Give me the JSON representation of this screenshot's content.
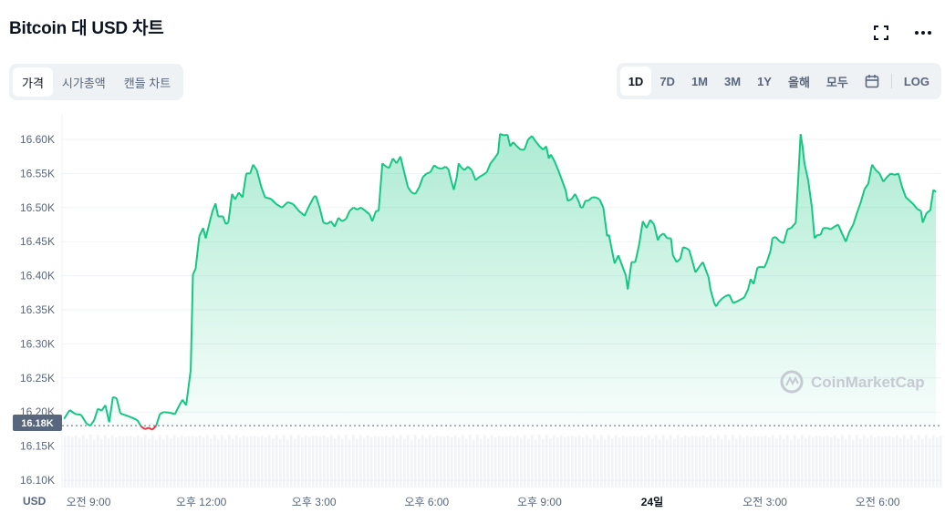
{
  "header": {
    "title": "Bitcoin 대 USD 차트"
  },
  "icons": {
    "fullscreen": "fullscreen-icon",
    "more": "more-icon",
    "calendar": "calendar-icon"
  },
  "view_tabs": [
    {
      "label": "가격",
      "active": true
    },
    {
      "label": "시가총액",
      "active": false
    },
    {
      "label": "캔들 차트",
      "active": false
    }
  ],
  "range_tabs": [
    {
      "label": "1D",
      "active": true
    },
    {
      "label": "7D",
      "active": false
    },
    {
      "label": "1M",
      "active": false
    },
    {
      "label": "3M",
      "active": false
    },
    {
      "label": "1Y",
      "active": false
    },
    {
      "label": "올해",
      "active": false
    },
    {
      "label": "모두",
      "active": false
    }
  ],
  "log_label": "LOG",
  "watermark": "CoinMarketCap",
  "colors": {
    "up": "#16c784",
    "down": "#ea3943",
    "volume": "#cfd6e4",
    "badge": "#58667e"
  },
  "chart_data": {
    "type": "line",
    "title": "Bitcoin 대 USD 차트",
    "currency_label": "USD",
    "y_ticks": [
      "16.60K",
      "16.55K",
      "16.50K",
      "16.45K",
      "16.40K",
      "16.35K",
      "16.30K",
      "16.25K",
      "16.20K",
      "16.15K",
      "16.10K"
    ],
    "y_tick_values": [
      16600,
      16550,
      16500,
      16450,
      16400,
      16350,
      16300,
      16250,
      16200,
      16150,
      16100
    ],
    "ylim": [
      16085,
      16625
    ],
    "x_ticks": [
      {
        "label": "오전 9:00",
        "t": 0,
        "bold": false
      },
      {
        "label": "오후 12:00",
        "t": 3,
        "bold": false
      },
      {
        "label": "오후 3:00",
        "t": 6,
        "bold": false
      },
      {
        "label": "오후 6:00",
        "t": 9,
        "bold": false
      },
      {
        "label": "오후 9:00",
        "t": 12,
        "bold": false
      },
      {
        "label": "24일",
        "t": 15,
        "bold": true
      },
      {
        "label": "오전 3:00",
        "t": 18,
        "bold": false
      },
      {
        "label": "오전 6:00",
        "t": 21,
        "bold": false
      }
    ],
    "x_range_hours": [
      -0.7,
      22.6
    ],
    "baseline": {
      "value": 16180,
      "label": "16.18K"
    },
    "series": [
      {
        "points": [
          [
            -0.65,
            16190
          ],
          [
            -0.5,
            16203
          ],
          [
            -0.35,
            16197
          ],
          [
            -0.2,
            16196
          ],
          [
            -0.05,
            16183
          ],
          [
            0.05,
            16180
          ],
          [
            0.15,
            16188
          ],
          [
            0.25,
            16205
          ],
          [
            0.35,
            16202
          ],
          [
            0.45,
            16210
          ],
          [
            0.55,
            16185
          ],
          [
            0.65,
            16222
          ],
          [
            0.75,
            16220
          ],
          [
            0.85,
            16198
          ],
          [
            1.0,
            16195
          ],
          [
            1.15,
            16192
          ],
          [
            1.3,
            16188
          ],
          [
            1.4,
            16179
          ],
          [
            1.5,
            16175
          ],
          [
            1.6,
            16177
          ],
          [
            1.7,
            16174
          ],
          [
            1.8,
            16180
          ],
          [
            1.9,
            16197
          ],
          [
            2.0,
            16200
          ],
          [
            2.15,
            16199
          ],
          [
            2.3,
            16197
          ],
          [
            2.4,
            16208
          ],
          [
            2.5,
            16218
          ],
          [
            2.6,
            16210
          ],
          [
            2.72,
            16262
          ],
          [
            2.78,
            16402
          ],
          [
            2.85,
            16410
          ],
          [
            2.95,
            16458
          ],
          [
            3.05,
            16470
          ],
          [
            3.12,
            16455
          ],
          [
            3.22,
            16478
          ],
          [
            3.3,
            16495
          ],
          [
            3.38,
            16506
          ],
          [
            3.45,
            16487
          ],
          [
            3.58,
            16487
          ],
          [
            3.65,
            16476
          ],
          [
            3.72,
            16478
          ],
          [
            3.82,
            16520
          ],
          [
            3.9,
            16512
          ],
          [
            4.0,
            16522
          ],
          [
            4.1,
            16515
          ],
          [
            4.2,
            16550
          ],
          [
            4.3,
            16550
          ],
          [
            4.38,
            16563
          ],
          [
            4.48,
            16555
          ],
          [
            4.6,
            16530
          ],
          [
            4.7,
            16515
          ],
          [
            4.85,
            16513
          ],
          [
            5.0,
            16505
          ],
          [
            5.15,
            16500
          ],
          [
            5.3,
            16508
          ],
          [
            5.45,
            16505
          ],
          [
            5.6,
            16495
          ],
          [
            5.75,
            16488
          ],
          [
            5.85,
            16500
          ],
          [
            6.0,
            16516
          ],
          [
            6.05,
            16517
          ],
          [
            6.15,
            16500
          ],
          [
            6.25,
            16478
          ],
          [
            6.35,
            16476
          ],
          [
            6.45,
            16480
          ],
          [
            6.55,
            16472
          ],
          [
            6.65,
            16485
          ],
          [
            6.75,
            16480
          ],
          [
            6.85,
            16483
          ],
          [
            6.95,
            16495
          ],
          [
            7.05,
            16500
          ],
          [
            7.15,
            16497
          ],
          [
            7.25,
            16500
          ],
          [
            7.35,
            16496
          ],
          [
            7.48,
            16490
          ],
          [
            7.55,
            16480
          ],
          [
            7.65,
            16495
          ],
          [
            7.72,
            16495
          ],
          [
            7.82,
            16565
          ],
          [
            7.92,
            16560
          ],
          [
            8.0,
            16558
          ],
          [
            8.1,
            16572
          ],
          [
            8.2,
            16565
          ],
          [
            8.3,
            16575
          ],
          [
            8.4,
            16552
          ],
          [
            8.5,
            16530
          ],
          [
            8.6,
            16522
          ],
          [
            8.7,
            16520
          ],
          [
            8.8,
            16530
          ],
          [
            8.9,
            16545
          ],
          [
            9.0,
            16550
          ],
          [
            9.1,
            16552
          ],
          [
            9.2,
            16562
          ],
          [
            9.3,
            16558
          ],
          [
            9.4,
            16557
          ],
          [
            9.5,
            16560
          ],
          [
            9.58,
            16556
          ],
          [
            9.65,
            16540
          ],
          [
            9.72,
            16526
          ],
          [
            9.8,
            16545
          ],
          [
            9.85,
            16565
          ],
          [
            9.9,
            16560
          ],
          [
            10.0,
            16555
          ],
          [
            10.1,
            16560
          ],
          [
            10.2,
            16555
          ],
          [
            10.3,
            16540
          ],
          [
            10.4,
            16545
          ],
          [
            10.5,
            16548
          ],
          [
            10.6,
            16552
          ],
          [
            10.7,
            16565
          ],
          [
            10.8,
            16572
          ],
          [
            10.9,
            16580
          ],
          [
            10.95,
            16608
          ],
          [
            11.05,
            16606
          ],
          [
            11.15,
            16607
          ],
          [
            11.22,
            16590
          ],
          [
            11.3,
            16596
          ],
          [
            11.4,
            16590
          ],
          [
            11.5,
            16585
          ],
          [
            11.6,
            16585
          ],
          [
            11.7,
            16600
          ],
          [
            11.8,
            16605
          ],
          [
            11.9,
            16597
          ],
          [
            12.0,
            16590
          ],
          [
            12.1,
            16585
          ],
          [
            12.18,
            16590
          ],
          [
            12.25,
            16572
          ],
          [
            12.3,
            16578
          ],
          [
            12.4,
            16568
          ],
          [
            12.5,
            16555
          ],
          [
            12.6,
            16540
          ],
          [
            12.7,
            16525
          ],
          [
            12.75,
            16510
          ],
          [
            12.85,
            16512
          ],
          [
            12.95,
            16520
          ],
          [
            13.05,
            16508
          ],
          [
            13.1,
            16500
          ],
          [
            13.15,
            16500
          ],
          [
            13.22,
            16510
          ],
          [
            13.3,
            16510
          ],
          [
            13.4,
            16515
          ],
          [
            13.5,
            16515
          ],
          [
            13.6,
            16512
          ],
          [
            13.7,
            16500
          ],
          [
            13.8,
            16458
          ],
          [
            13.85,
            16460
          ],
          [
            13.92,
            16440
          ],
          [
            14.0,
            16418
          ],
          [
            14.1,
            16430
          ],
          [
            14.2,
            16415
          ],
          [
            14.3,
            16400
          ],
          [
            14.35,
            16380
          ],
          [
            14.45,
            16420
          ],
          [
            14.55,
            16420
          ],
          [
            14.65,
            16445
          ],
          [
            14.75,
            16480
          ],
          [
            14.85,
            16470
          ],
          [
            14.95,
            16482
          ],
          [
            15.05,
            16475
          ],
          [
            15.15,
            16452
          ],
          [
            15.2,
            16458
          ],
          [
            15.3,
            16462
          ],
          [
            15.4,
            16455
          ],
          [
            15.5,
            16455
          ],
          [
            15.55,
            16430
          ],
          [
            15.65,
            16420
          ],
          [
            15.75,
            16425
          ],
          [
            15.82,
            16442
          ],
          [
            15.92,
            16440
          ],
          [
            15.98,
            16438
          ],
          [
            16.05,
            16425
          ],
          [
            16.15,
            16405
          ],
          [
            16.25,
            16413
          ],
          [
            16.35,
            16420
          ],
          [
            16.45,
            16405
          ],
          [
            16.5,
            16398
          ],
          [
            16.55,
            16380
          ],
          [
            16.65,
            16360
          ],
          [
            16.7,
            16355
          ],
          [
            16.75,
            16360
          ],
          [
            16.85,
            16366
          ],
          [
            16.95,
            16370
          ],
          [
            17.05,
            16372
          ],
          [
            17.15,
            16360
          ],
          [
            17.25,
            16362
          ],
          [
            17.35,
            16365
          ],
          [
            17.45,
            16368
          ],
          [
            17.55,
            16380
          ],
          [
            17.62,
            16395
          ],
          [
            17.7,
            16388
          ],
          [
            17.8,
            16412
          ],
          [
            17.9,
            16413
          ],
          [
            17.98,
            16412
          ],
          [
            18.05,
            16420
          ],
          [
            18.15,
            16437
          ],
          [
            18.2,
            16455
          ],
          [
            18.28,
            16457
          ],
          [
            18.4,
            16450
          ],
          [
            18.5,
            16448
          ],
          [
            18.6,
            16468
          ],
          [
            18.7,
            16470
          ],
          [
            18.82,
            16478
          ],
          [
            18.88,
            16538
          ],
          [
            18.95,
            16608
          ],
          [
            19.0,
            16590
          ],
          [
            19.05,
            16565
          ],
          [
            19.15,
            16540
          ],
          [
            19.25,
            16500
          ],
          [
            19.32,
            16455
          ],
          [
            19.4,
            16460
          ],
          [
            19.48,
            16460
          ],
          [
            19.55,
            16470
          ],
          [
            19.65,
            16470
          ],
          [
            19.75,
            16468
          ],
          [
            19.85,
            16472
          ],
          [
            19.95,
            16475
          ],
          [
            20.05,
            16462
          ],
          [
            20.15,
            16450
          ],
          [
            20.25,
            16465
          ],
          [
            20.35,
            16475
          ],
          [
            20.45,
            16492
          ],
          [
            20.55,
            16508
          ],
          [
            20.65,
            16527
          ],
          [
            20.75,
            16535
          ],
          [
            20.85,
            16563
          ],
          [
            20.95,
            16555
          ],
          [
            21.05,
            16550
          ],
          [
            21.15,
            16538
          ],
          [
            21.25,
            16545
          ],
          [
            21.35,
            16550
          ],
          [
            21.45,
            16548
          ],
          [
            21.55,
            16550
          ],
          [
            21.65,
            16530
          ],
          [
            21.75,
            16515
          ],
          [
            21.85,
            16510
          ],
          [
            21.95,
            16505
          ],
          [
            22.05,
            16498
          ],
          [
            22.15,
            16495
          ],
          [
            22.2,
            16478
          ],
          [
            22.3,
            16492
          ],
          [
            22.4,
            16496
          ],
          [
            22.48,
            16526
          ],
          [
            22.55,
            16523
          ]
        ]
      }
    ]
  }
}
